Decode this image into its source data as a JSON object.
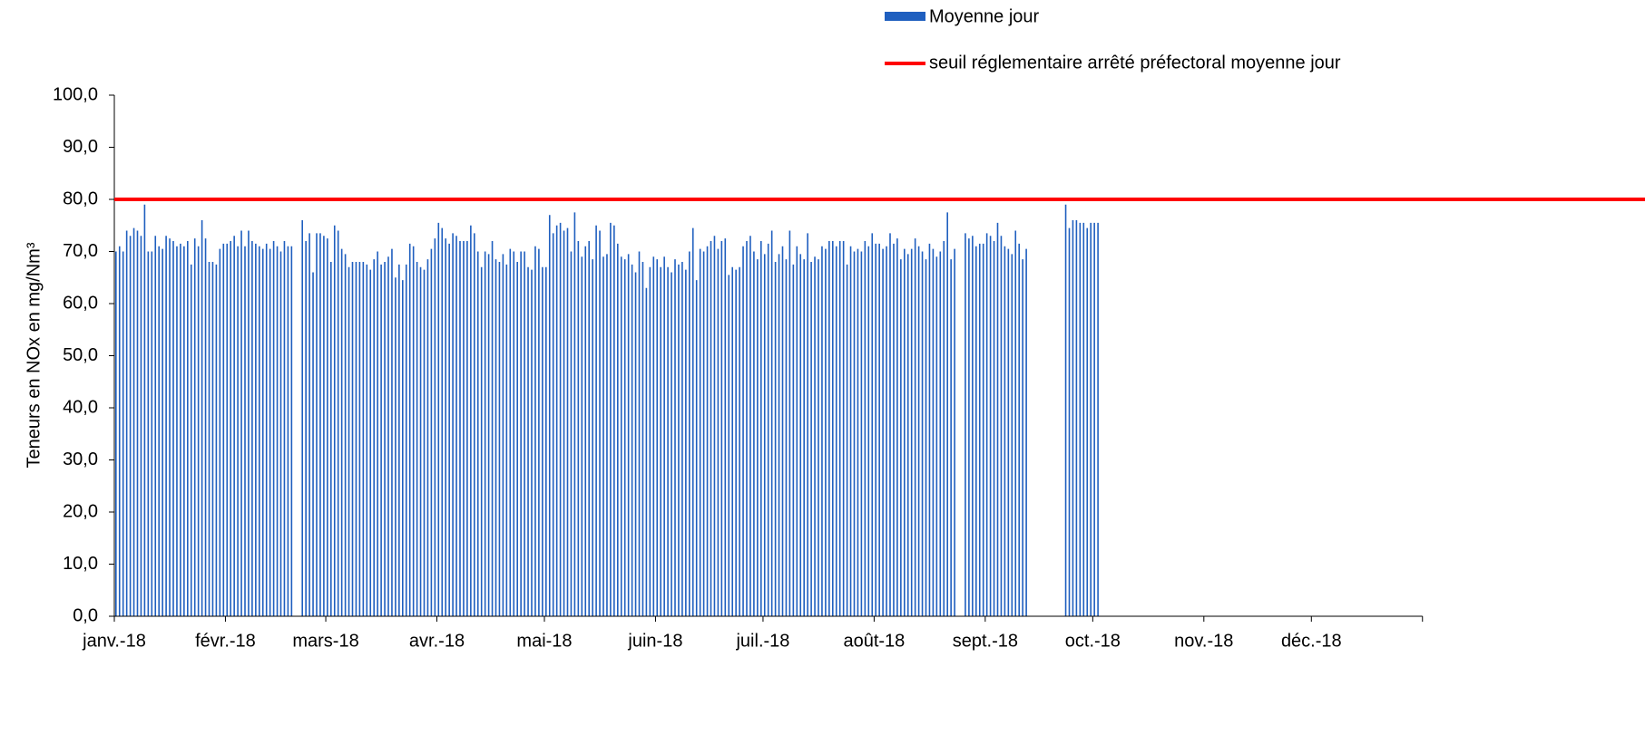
{
  "chart_data": {
    "type": "bar",
    "y_label": "Teneurs en NOx en mg/Nm³",
    "categories": [
      "janv.-18",
      null,
      null,
      null,
      null,
      null,
      null,
      null,
      null,
      null,
      null,
      null,
      null,
      null,
      null,
      null,
      null,
      null,
      null,
      null,
      null,
      null,
      null,
      null,
      null,
      null,
      null,
      null,
      null,
      null,
      null,
      "févr.-18",
      null,
      null,
      null,
      null,
      null,
      null,
      null,
      null,
      null,
      null,
      null,
      null,
      null,
      null,
      null,
      null,
      null,
      null,
      null,
      null,
      null,
      null,
      null,
      null,
      null,
      null,
      null,
      "mars-18",
      null,
      null,
      null,
      null,
      null,
      null,
      null,
      null,
      null,
      null,
      null,
      null,
      null,
      null,
      null,
      null,
      null,
      null,
      null,
      null,
      null,
      null,
      null,
      null,
      null,
      null,
      null,
      null,
      null,
      null,
      "avr.-18",
      null,
      null,
      null,
      null,
      null,
      null,
      null,
      null,
      null,
      null,
      null,
      null,
      null,
      null,
      null,
      null,
      null,
      null,
      null,
      null,
      null,
      null,
      null,
      null,
      null,
      null,
      null,
      null,
      null,
      "mai-18",
      null,
      null,
      null,
      null,
      null,
      null,
      null,
      null,
      null,
      null,
      null,
      null,
      null,
      null,
      null,
      null,
      null,
      null,
      null,
      null,
      null,
      null,
      null,
      null,
      null,
      null,
      null,
      null,
      null,
      null,
      "juin-18",
      null,
      null,
      null,
      null,
      null,
      null,
      null,
      null,
      null,
      null,
      null,
      null,
      null,
      null,
      null,
      null,
      null,
      null,
      null,
      null,
      null,
      null,
      null,
      null,
      null,
      null,
      null,
      null,
      null,
      "juil.-18",
      null,
      null,
      null,
      null,
      null,
      null,
      null,
      null,
      null,
      null,
      null,
      null,
      null,
      null,
      null,
      null,
      null,
      null,
      null,
      null,
      null,
      null,
      null,
      null,
      null,
      null,
      null,
      null,
      null,
      null,
      "août-18",
      null,
      null,
      null,
      null,
      null,
      null,
      null,
      null,
      null,
      null,
      null,
      null,
      null,
      null,
      null,
      null,
      null,
      null,
      null,
      null,
      null,
      null,
      null,
      null,
      null,
      null,
      null,
      null,
      null,
      null,
      "sept.-18",
      null,
      null,
      null,
      null,
      null,
      null,
      null,
      null,
      null,
      null,
      null,
      null,
      null,
      null,
      null,
      null,
      null,
      null,
      null,
      null,
      null,
      null,
      null,
      null,
      null,
      null,
      null,
      null,
      null,
      "oct.-18",
      null,
      null,
      null,
      null,
      null,
      null,
      null,
      null,
      null,
      null,
      null,
      null,
      null,
      null,
      null,
      null,
      null,
      null,
      null,
      null,
      null,
      null,
      null,
      null,
      null,
      null,
      null,
      null,
      null,
      null,
      "nov.-18",
      null,
      null,
      null,
      null,
      null,
      null,
      null,
      null,
      null,
      null,
      null,
      null,
      null,
      null,
      null,
      null,
      null,
      null,
      null,
      null,
      null,
      null,
      null,
      null,
      null,
      null,
      null,
      null,
      null,
      "déc.-18",
      null,
      null,
      null,
      null,
      null,
      null,
      null,
      null,
      null,
      null,
      null,
      null,
      null,
      null,
      null,
      null,
      null,
      null,
      null,
      null,
      null,
      null,
      null,
      null,
      null,
      null,
      null,
      null,
      null,
      null
    ],
    "series": [
      {
        "name": "Moyenne jour",
        "color": "#1f5fbf",
        "values": [
          70,
          71,
          70,
          74,
          73,
          74.5,
          74,
          73,
          79,
          70,
          70,
          73,
          71,
          70.5,
          73,
          72.5,
          72,
          71,
          71.5,
          71,
          72,
          67.5,
          72.5,
          71,
          76,
          72.5,
          68,
          68,
          67.5,
          70.5,
          71.5,
          71.5,
          72,
          73,
          71,
          74,
          71,
          74,
          72,
          71.5,
          71,
          70.5,
          71.5,
          70.5,
          72,
          71,
          70,
          72,
          71,
          71,
          null,
          null,
          76,
          72,
          73.5,
          66,
          73.5,
          73.5,
          73,
          72.5,
          68,
          75,
          74,
          70.5,
          69.5,
          67,
          68,
          68,
          68,
          68,
          67.5,
          66.5,
          68.5,
          70,
          67.5,
          68,
          69,
          70.5,
          65,
          67.5,
          64.5,
          67.5,
          71.5,
          71,
          68,
          67,
          66.5,
          68.5,
          70.5,
          72.5,
          75.5,
          74.5,
          72.5,
          71.5,
          73.5,
          73,
          72,
          72,
          72,
          75,
          73.5,
          70,
          67,
          70,
          69.5,
          72,
          68.5,
          68,
          69.5,
          67.5,
          70.5,
          70,
          68,
          70,
          70,
          67,
          66.5,
          71,
          70.5,
          67,
          67,
          77,
          73.5,
          75,
          75.5,
          74,
          74.5,
          70,
          77.5,
          72,
          69,
          71,
          72,
          68.5,
          75,
          74,
          69,
          69.5,
          75.5,
          75,
          71.5,
          69,
          68.5,
          69.5,
          67.5,
          66,
          70,
          68,
          63,
          67,
          69,
          68.5,
          67,
          69,
          67,
          66,
          68.5,
          67.5,
          68,
          66.5,
          70,
          74.5,
          64.5,
          70.5,
          70,
          71,
          72,
          73,
          70.5,
          72,
          72.5,
          65.5,
          67,
          66.5,
          67,
          71,
          72,
          73,
          70,
          68.5,
          72,
          69.5,
          71.5,
          74,
          68,
          69.5,
          71,
          68.5,
          74,
          67.5,
          71,
          69.5,
          68.5,
          73.5,
          68,
          69,
          68.5,
          71,
          70.5,
          72,
          72,
          71,
          72,
          72,
          67.5,
          71,
          70,
          70.5,
          70,
          72,
          71,
          73.5,
          71.5,
          71.5,
          70.5,
          71,
          73.5,
          71.5,
          72.5,
          68.5,
          70.5,
          69.5,
          70.5,
          72.5,
          71,
          70,
          68.5,
          71.5,
          70.5,
          69,
          70,
          72,
          77.5,
          68.5,
          70.5,
          null,
          null,
          73.5,
          72.5,
          73,
          71,
          71.5,
          71.5,
          73.5,
          73,
          72,
          75.5,
          73,
          71,
          70.5,
          69.5,
          74,
          71.5,
          68.5,
          70.5,
          null,
          null,
          null,
          null,
          null,
          null,
          null,
          null,
          null,
          null,
          79,
          74.5,
          76,
          76,
          75.5,
          75.5,
          74.5,
          75.5,
          75.5,
          75.5,
          null,
          null,
          null,
          null,
          null,
          null,
          null,
          null,
          null,
          null,
          null,
          null,
          null,
          null,
          null,
          null,
          null,
          null,
          null,
          null,
          null,
          null,
          null,
          null,
          null,
          null,
          null,
          null,
          null,
          null,
          null,
          null,
          null,
          null,
          null,
          null,
          null,
          null,
          null,
          null,
          null,
          null,
          null,
          null,
          null,
          null,
          null,
          null,
          null,
          null,
          null,
          null,
          null,
          null,
          null,
          null,
          null,
          null,
          null,
          null,
          null,
          null,
          null,
          null,
          null,
          null,
          null,
          null,
          null,
          null,
          null,
          null,
          null,
          null,
          null,
          null,
          null,
          null,
          null,
          null,
          null,
          null,
          null,
          null,
          null,
          null,
          null,
          null,
          null,
          null
        ]
      }
    ],
    "threshold": {
      "name": "seuil réglementaire arrêté préfectoral moyenne jour",
      "value": 80,
      "color": "#ff0000"
    },
    "ylim": [
      0,
      100
    ],
    "yticks": [
      {
        "value": 0,
        "label": "0,0"
      },
      {
        "value": 10,
        "label": "10,0"
      },
      {
        "value": 20,
        "label": "20,0"
      },
      {
        "value": 30,
        "label": "30,0"
      },
      {
        "value": 40,
        "label": "40,0"
      },
      {
        "value": 50,
        "label": "50,0"
      },
      {
        "value": 60,
        "label": "60,0"
      },
      {
        "value": 70,
        "label": "70,0"
      },
      {
        "value": 80,
        "label": "80,0"
      },
      {
        "value": 90,
        "label": "90,0"
      },
      {
        "value": 100,
        "label": "100,0"
      }
    ]
  }
}
